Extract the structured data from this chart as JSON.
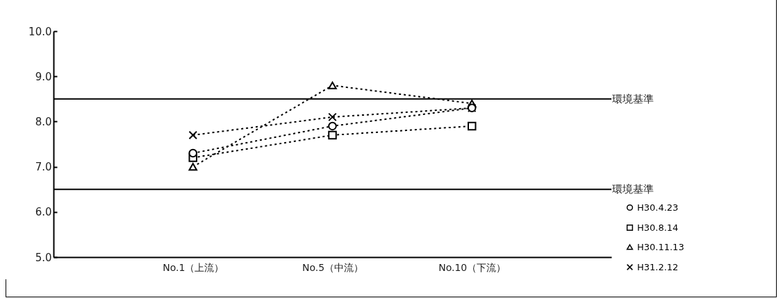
{
  "chart_data": {
    "type": "line",
    "categories": [
      "No.1（上流）",
      "No.5（中流）",
      "No.10（下流）"
    ],
    "series": [
      {
        "name": "H30.4.23",
        "color": "#000000",
        "marker": "circle",
        "values": [
          7.3,
          7.9,
          8.3
        ]
      },
      {
        "name": "H30.8.14",
        "color": "#000000",
        "marker": "square",
        "values": [
          7.2,
          7.7,
          7.9
        ]
      },
      {
        "name": "H30.11.13",
        "color": "#000000",
        "marker": "triangle",
        "values": [
          7.0,
          8.8,
          8.4
        ]
      },
      {
        "name": "H31.2.12",
        "color": "#000000",
        "marker": "cross",
        "values": [
          7.7,
          8.1,
          8.3
        ]
      }
    ],
    "ylim": [
      5.0,
      10.0
    ],
    "yticks": [
      {
        "value": 5,
        "label": "5.0"
      },
      {
        "value": 6,
        "label": "6.0"
      },
      {
        "value": 7,
        "label": "7.0"
      },
      {
        "value": 8,
        "label": "8.0"
      },
      {
        "value": 9,
        "label": "9.0"
      },
      {
        "value": 10,
        "label": "10.0"
      }
    ],
    "ref_lines": [
      {
        "axis": "y",
        "value": 8.5,
        "label": "環境基準",
        "color": "#000000",
        "line_style": "solid"
      },
      {
        "axis": "y",
        "value": 6.5,
        "label": "環境基準",
        "color": "#000000",
        "line_style": "solid"
      }
    ],
    "line_style": "dotted",
    "grid": false,
    "legend": "bottom right"
  }
}
